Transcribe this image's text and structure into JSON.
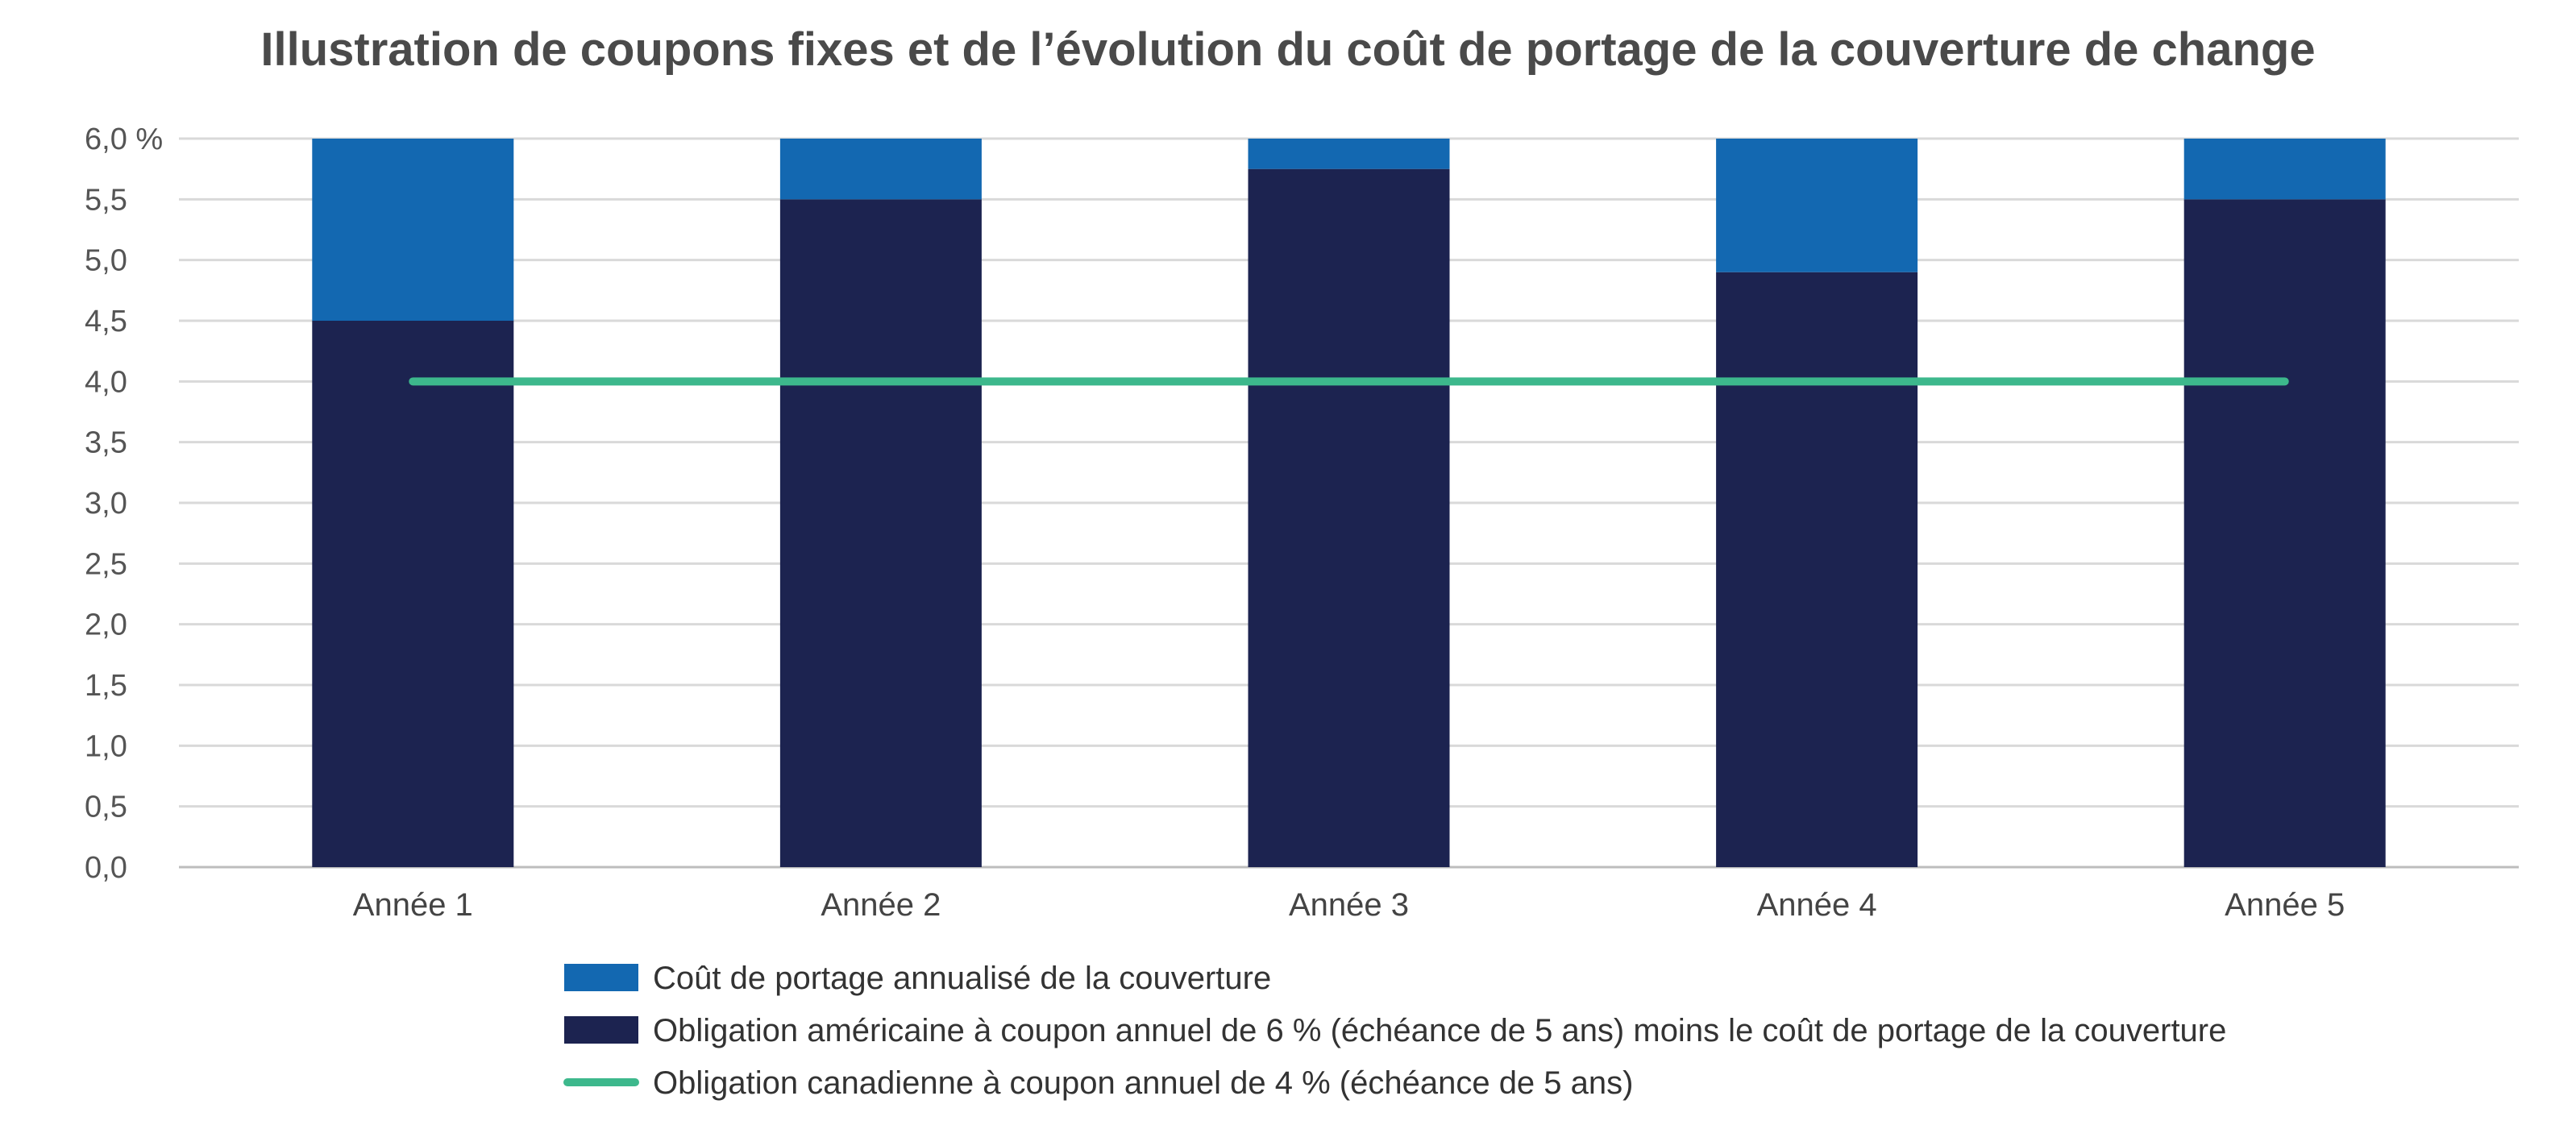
{
  "chart_data": {
    "type": "bar",
    "title": "Illustration de coupons fixes et de l’évolution du coût de portage de la couverture de change",
    "categories": [
      "Année 1",
      "Année 2",
      "Année 3",
      "Année 4",
      "Année 5"
    ],
    "stacked": true,
    "series": [
      {
        "name": "Obligation américaine à coupon annuel de 6 % (échéance de 5 ans) moins le coût de portage de la couverture",
        "type": "bar",
        "color": "#1c2350",
        "values": [
          4.5,
          5.5,
          5.75,
          4.9,
          5.5
        ]
      },
      {
        "name": "Coût de portage annualisé de la couverture",
        "type": "bar",
        "color": "#1368b1",
        "values": [
          1.5,
          0.5,
          0.25,
          1.1,
          0.5
        ]
      },
      {
        "name": "Obligation canadienne à coupon annuel de 4 % (échéance de 5 ans)",
        "type": "line",
        "color": "#3db88c",
        "values": [
          4.0,
          4.0,
          4.0,
          4.0,
          4.0
        ]
      }
    ],
    "ylim": [
      0,
      6
    ],
    "y_ticks": [
      "0,0",
      "0,5",
      "1,0",
      "1,5",
      "2,0",
      "2,5",
      "3,0",
      "3,5",
      "4,0",
      "4,5",
      "5,0",
      "5,5",
      "6,0 %"
    ],
    "grid": true,
    "legend_position": "bottom",
    "legend_order": [
      1,
      0,
      2
    ]
  }
}
